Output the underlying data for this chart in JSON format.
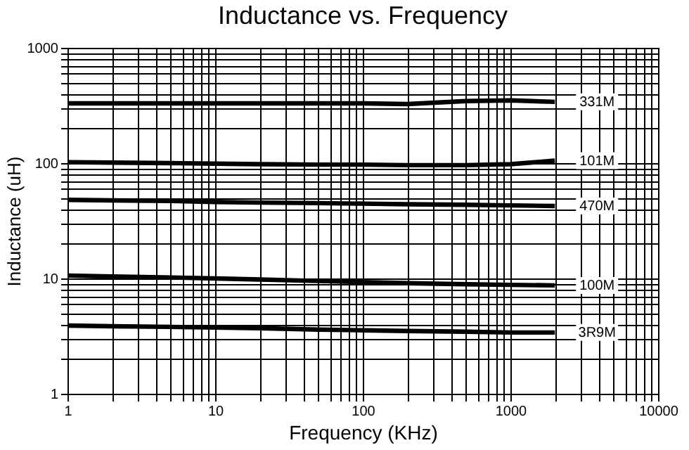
{
  "chart_data": {
    "type": "line",
    "title": "Inductance vs. Frequency",
    "xlabel": "Frequency (KHz)",
    "ylabel": "Inductance (uH)",
    "log": "xy",
    "grid": true,
    "xlim": [
      1,
      10000
    ],
    "ylim": [
      1,
      1000
    ],
    "xticks": [
      1,
      {
        "value": 2,
        "label": null
      },
      {
        "value": 3,
        "label": null
      },
      {
        "value": 4,
        "label": null
      },
      {
        "value": 5,
        "label": null
      },
      {
        "value": 6,
        "label": null
      },
      {
        "value": 7,
        "label": null
      },
      {
        "value": 8,
        "label": null
      },
      {
        "value": 9,
        "label": null
      },
      10,
      {
        "value": 20,
        "label": null
      },
      {
        "value": 30,
        "label": null
      },
      {
        "value": 40,
        "label": null
      },
      {
        "value": 50,
        "label": null
      },
      {
        "value": 60,
        "label": null
      },
      {
        "value": 70,
        "label": null
      },
      {
        "value": 80,
        "label": null
      },
      {
        "value": 90,
        "label": null
      },
      100,
      {
        "value": 200,
        "label": null
      },
      {
        "value": 300,
        "label": null
      },
      {
        "value": 400,
        "label": null
      },
      {
        "value": 500,
        "label": null
      },
      {
        "value": 600,
        "label": null
      },
      {
        "value": 700,
        "label": null
      },
      {
        "value": 800,
        "label": null
      },
      {
        "value": 900,
        "label": null
      },
      1000,
      {
        "value": 2000,
        "label": null
      },
      {
        "value": 3000,
        "label": null
      },
      {
        "value": 4000,
        "label": null
      },
      {
        "value": 5000,
        "label": null
      },
      {
        "value": 6000,
        "label": null
      },
      {
        "value": 7000,
        "label": null
      },
      {
        "value": 8000,
        "label": null
      },
      {
        "value": 9000,
        "label": null
      },
      10000
    ],
    "yticks": [
      1,
      {
        "value": 2,
        "label": null
      },
      {
        "value": 3,
        "label": null
      },
      {
        "value": 4,
        "label": null
      },
      {
        "value": 5,
        "label": null
      },
      {
        "value": 6,
        "label": null
      },
      {
        "value": 7,
        "label": null
      },
      {
        "value": 8,
        "label": null
      },
      {
        "value": 9,
        "label": null
      },
      10,
      {
        "value": 20,
        "label": null
      },
      {
        "value": 30,
        "label": null
      },
      {
        "value": 40,
        "label": null
      },
      {
        "value": 50,
        "label": null
      },
      {
        "value": 60,
        "label": null
      },
      {
        "value": 70,
        "label": null
      },
      {
        "value": 80,
        "label": null
      },
      {
        "value": 90,
        "label": null
      },
      100,
      {
        "value": 200,
        "label": null
      },
      {
        "value": 300,
        "label": null
      },
      {
        "value": 400,
        "label": null
      },
      {
        "value": 500,
        "label": null
      },
      {
        "value": 600,
        "label": null
      },
      {
        "value": 700,
        "label": null
      },
      {
        "value": 800,
        "label": null
      },
      {
        "value": 900,
        "label": null
      },
      1000
    ],
    "x": [
      1,
      2,
      5,
      10,
      20,
      50,
      100,
      200,
      500,
      1000,
      2000
    ],
    "series": [
      {
        "name": "331M",
        "color": "#000000",
        "values": [
          330,
          330,
          330,
          330,
          330,
          330,
          330,
          325,
          345,
          350,
          340
        ]
      },
      {
        "name": "101M",
        "color": "#000000",
        "values": [
          102,
          101,
          100,
          99,
          98,
          97,
          97,
          96,
          96,
          98,
          105
        ]
      },
      {
        "name": "470M",
        "color": "#000000",
        "values": [
          48,
          47.5,
          47,
          46,
          45.5,
          45,
          44.5,
          44,
          43.5,
          43,
          42.5
        ]
      },
      {
        "name": "100M",
        "color": "#000000",
        "values": [
          10.6,
          10.4,
          10.2,
          10,
          9.8,
          9.5,
          9.3,
          9.1,
          8.9,
          8.8,
          8.7
        ]
      },
      {
        "name": "3R9M",
        "color": "#000000",
        "values": [
          3.9,
          3.85,
          3.8,
          3.75,
          3.7,
          3.6,
          3.55,
          3.5,
          3.45,
          3.4,
          3.4
        ]
      }
    ]
  }
}
